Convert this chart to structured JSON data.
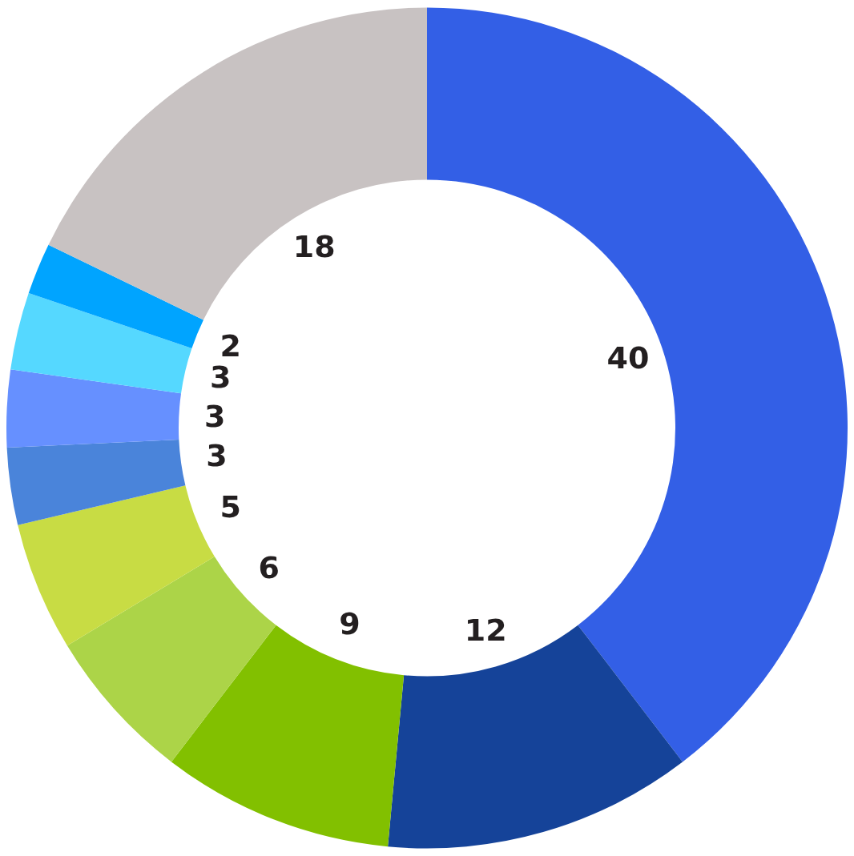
{
  "chart_data": {
    "type": "donut",
    "categories": [
      null,
      null,
      null,
      null,
      null,
      null,
      null,
      null,
      null,
      null
    ],
    "values": [
      40,
      12,
      9,
      6,
      5,
      3,
      3,
      3,
      2,
      18
    ],
    "colors": [
      "#335fe6",
      "#154399",
      "#82c000",
      "#acd448",
      "#c8dc44",
      "#4a84da",
      "#6690ff",
      "#55d8ff",
      "#00a4ff",
      "#c8c2c2"
    ],
    "data_labels": true
  }
}
